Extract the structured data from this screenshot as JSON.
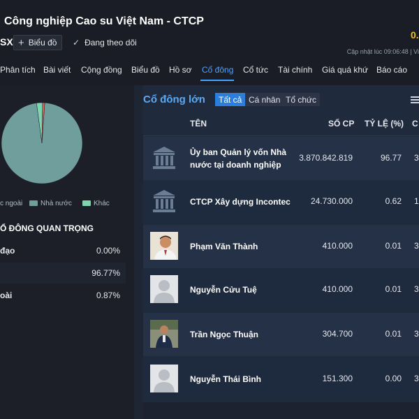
{
  "header": {
    "company_title": "Công nghiệp Cao su Việt Nam - CTCP",
    "ticker_fragment": "SX",
    "chart_button_label": "Biểu đồ",
    "follow_label": "Đang theo dõi",
    "price_fragment": "0.",
    "updated_text": "Cập nhật lúc  09:06:48 | Vi"
  },
  "nav": {
    "items": [
      "Phân tích",
      "Bài viết",
      "Cộng đồng",
      "Biểu đồ",
      "Hồ sơ",
      "Cổ đông",
      "Cổ tức",
      "Tài chính",
      "Giá quá khứ",
      "Báo cáo"
    ],
    "active": "Cổ đông"
  },
  "left": {
    "legend": [
      {
        "label": "c ngoài",
        "color": "#e05d5d"
      },
      {
        "label": "Nhà nước",
        "color": "#6f9e9c"
      },
      {
        "label": "Khác",
        "color": "#7dd6b0"
      }
    ],
    "pie": [
      {
        "name": "Nhà nước",
        "value": 96.77,
        "color": "#6f9e9c"
      },
      {
        "name": "Khác",
        "value": 2.36,
        "color": "#7dd6b0"
      },
      {
        "name": "Nước ngoài",
        "value": 0.87,
        "color": "#e05d5d"
      }
    ],
    "section_title": "Ổ ĐÔNG QUAN TRỌNG",
    "stats": [
      {
        "label": "đạo",
        "value": "0.00%"
      },
      {
        "label": "",
        "value": "96.77%"
      },
      {
        "label": "oài",
        "value": "0.87%"
      }
    ]
  },
  "right": {
    "title": "Cổ đông lớn",
    "filters": [
      "Tất cả",
      "Cá nhân",
      "Tổ chức"
    ],
    "active_filter": "Tất cả",
    "columns": {
      "name": "TÊN",
      "shares": "SỐ CP",
      "ratio": "TỶ LỆ (%)",
      "extra": "C"
    },
    "rows": [
      {
        "name": "Ủy ban Quản lý vốn Nhà nước tại doanh nghiệp",
        "shares": "3.870.842.819",
        "ratio": "96.77",
        "extra": "3",
        "avatar": "bank-icon"
      },
      {
        "name": "CTCP Xây dựng Incontec",
        "shares": "24.730.000",
        "ratio": "0.62",
        "extra": "1",
        "avatar": "bank-icon"
      },
      {
        "name": "Phạm Văn Thành",
        "shares": "410.000",
        "ratio": "0.01",
        "extra": "3",
        "avatar": "person-photo"
      },
      {
        "name": "Nguyễn Cửu Tuệ",
        "shares": "410.000",
        "ratio": "0.01",
        "extra": "3",
        "avatar": "person-placeholder-icon"
      },
      {
        "name": "Trần Ngọc Thuận",
        "shares": "304.700",
        "ratio": "0.01",
        "extra": "3",
        "avatar": "person-photo"
      },
      {
        "name": "Nguyễn Thái Bình",
        "shares": "151.300",
        "ratio": "0.00",
        "extra": "3",
        "avatar": "person-placeholder-icon"
      }
    ]
  }
}
